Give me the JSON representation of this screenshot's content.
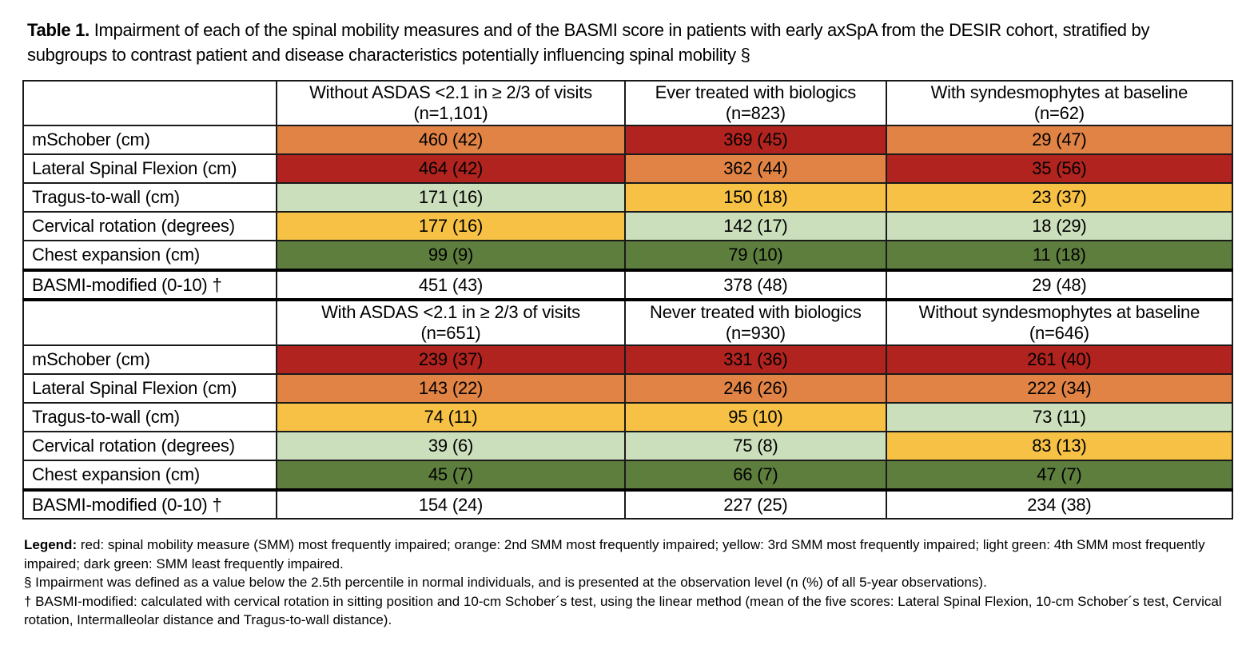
{
  "title": {
    "label": "Table 1.",
    "text": " Impairment of each of the spinal mobility measures and of the BASMI score in patients with early axSpA from the DESIR cohort, stratified by subgroups to contrast patient and disease characteristics potentially influencing spinal mobility §"
  },
  "colors": {
    "red": "#B0231E",
    "orange": "#E08345",
    "yellow": "#F6C144",
    "lightgreen": "#CBDFBC",
    "darkgreen": "#5E7E3E"
  },
  "sections": [
    {
      "headers": [
        {
          "line1": "Without ASDAS <2.1 in ≥ 2/3 of visits",
          "line2": "(n=1,101)"
        },
        {
          "line1": "Ever treated with biologics",
          "line2": "(n=823)"
        },
        {
          "line1": "With syndesmophytes at baseline",
          "line2": "(n=62)"
        }
      ],
      "rows": [
        {
          "label": "mSchober (cm)",
          "cells": [
            {
              "value": "460 (42)",
              "color": "orange"
            },
            {
              "value": "369 (45)",
              "color": "red"
            },
            {
              "value": "29 (47)",
              "color": "orange"
            }
          ]
        },
        {
          "label": "Lateral Spinal Flexion (cm)",
          "cells": [
            {
              "value": "464 (42)",
              "color": "red"
            },
            {
              "value": "362 (44)",
              "color": "orange"
            },
            {
              "value": "35 (56)",
              "color": "red"
            }
          ]
        },
        {
          "label": "Tragus-to-wall (cm)",
          "cells": [
            {
              "value": "171 (16)",
              "color": "lightgreen"
            },
            {
              "value": "150 (18)",
              "color": "yellow"
            },
            {
              "value": "23 (37)",
              "color": "yellow"
            }
          ]
        },
        {
          "label": "Cervical rotation (degrees)",
          "cells": [
            {
              "value": "177 (16)",
              "color": "yellow"
            },
            {
              "value": "142 (17)",
              "color": "lightgreen"
            },
            {
              "value": "18 (29)",
              "color": "lightgreen"
            }
          ]
        },
        {
          "label": "Chest expansion (cm)",
          "cells": [
            {
              "value": "99 (9)",
              "color": "darkgreen"
            },
            {
              "value": "79 (10)",
              "color": "darkgreen"
            },
            {
              "value": "11 (18)",
              "color": "darkgreen"
            }
          ]
        }
      ],
      "basmi": {
        "label": "BASMI-modified (0-10) †",
        "cells": [
          "451 (43)",
          "378 (48)",
          "29 (48)"
        ]
      }
    },
    {
      "headers": [
        {
          "line1": "With ASDAS <2.1 in ≥ 2/3 of visits",
          "line2": "(n=651)"
        },
        {
          "line1": "Never treated with biologics",
          "line2": "(n=930)"
        },
        {
          "line1": "Without syndesmophytes at baseline",
          "line2": "(n=646)"
        }
      ],
      "rows": [
        {
          "label": "mSchober (cm)",
          "cells": [
            {
              "value": "239 (37)",
              "color": "red"
            },
            {
              "value": "331 (36)",
              "color": "red"
            },
            {
              "value": "261 (40)",
              "color": "red"
            }
          ]
        },
        {
          "label": "Lateral Spinal Flexion (cm)",
          "cells": [
            {
              "value": "143 (22)",
              "color": "orange"
            },
            {
              "value": "246 (26)",
              "color": "orange"
            },
            {
              "value": "222 (34)",
              "color": "orange"
            }
          ]
        },
        {
          "label": "Tragus-to-wall (cm)",
          "cells": [
            {
              "value": "74 (11)",
              "color": "yellow"
            },
            {
              "value": "95 (10)",
              "color": "yellow"
            },
            {
              "value": "73 (11)",
              "color": "lightgreen"
            }
          ]
        },
        {
          "label": "Cervical rotation (degrees)",
          "cells": [
            {
              "value": "39 (6)",
              "color": "lightgreen"
            },
            {
              "value": "75 (8)",
              "color": "lightgreen"
            },
            {
              "value": "83 (13)",
              "color": "yellow"
            }
          ]
        },
        {
          "label": "Chest expansion (cm)",
          "cells": [
            {
              "value": "45 (7)",
              "color": "darkgreen"
            },
            {
              "value": "66 (7)",
              "color": "darkgreen"
            },
            {
              "value": "47 (7)",
              "color": "darkgreen"
            }
          ]
        }
      ],
      "basmi": {
        "label": "BASMI-modified (0-10) †",
        "cells": [
          "154 (24)",
          "227 (25)",
          "234 (38)"
        ]
      }
    }
  ],
  "legend": {
    "label": "Legend:",
    "text": " red: spinal mobility measure (SMM) most frequently impaired; orange: 2nd SMM most frequently impaired; yellow: 3rd SMM most frequently impaired; light green: 4th SMM most frequently impaired; dark green: SMM least frequently impaired.",
    "note1": "§ Impairment was defined as a value below the 2.5th percentile in normal individuals, and is presented at the observation level (n (%) of all 5-year observations).",
    "note2": "† BASMI-modified: calculated with cervical rotation in sitting position and 10-cm Schober´s test, using the linear method (mean of the five scores: Lateral Spinal Flexion, 10-cm Schober´s test, Cervical rotation, Intermalleolar distance and Tragus-to-wall distance)."
  }
}
